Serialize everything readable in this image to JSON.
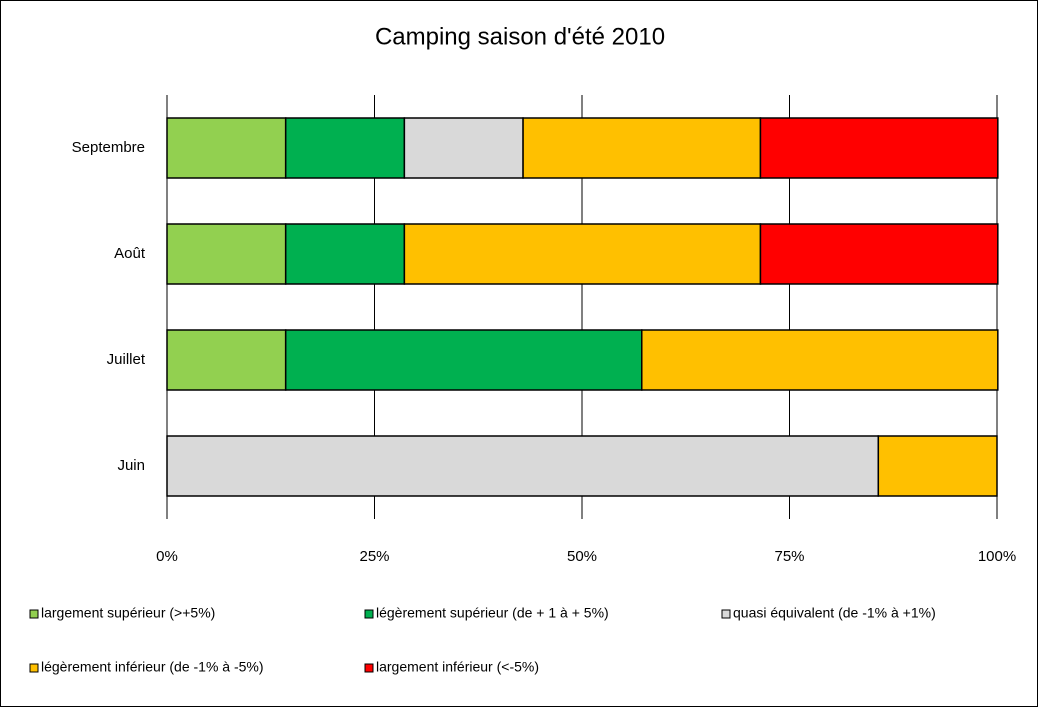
{
  "chart_data": {
    "type": "stacked-bar-horizontal",
    "title": "Camping saison d'été 2010",
    "categories": [
      "Juin",
      "Juillet",
      "Août",
      "Septembre"
    ],
    "series": [
      {
        "name": "largement supérieur (>+5%)",
        "color": "#92d050",
        "values": [
          0,
          14.3,
          14.3,
          14.3
        ]
      },
      {
        "name": "légèrement supérieur (de + 1 à + 5%)",
        "color": "#00b050",
        "values": [
          0,
          42.9,
          14.3,
          14.3
        ]
      },
      {
        "name": "quasi équivalent (de  -1% à +1%)",
        "color": "#d9d9d9",
        "values": [
          85.7,
          0,
          0,
          14.3
        ]
      },
      {
        "name": "légèrement inférieur (de -1% à -5%)",
        "color": "#ffc000",
        "values": [
          14.3,
          42.9,
          42.9,
          28.6
        ]
      },
      {
        "name": "largement inférieur (<-5%)",
        "color": "#ff0000",
        "values": [
          0,
          0,
          28.6,
          28.6
        ]
      }
    ],
    "xlim": [
      0,
      100
    ],
    "xticks": [
      {
        "value": 0,
        "label": "0%"
      },
      {
        "value": 25,
        "label": "25%"
      },
      {
        "value": 50,
        "label": "50%"
      },
      {
        "value": 75,
        "label": "75%"
      },
      {
        "value": 100,
        "label": "100%"
      }
    ],
    "grid": true,
    "legend": "bottom"
  }
}
